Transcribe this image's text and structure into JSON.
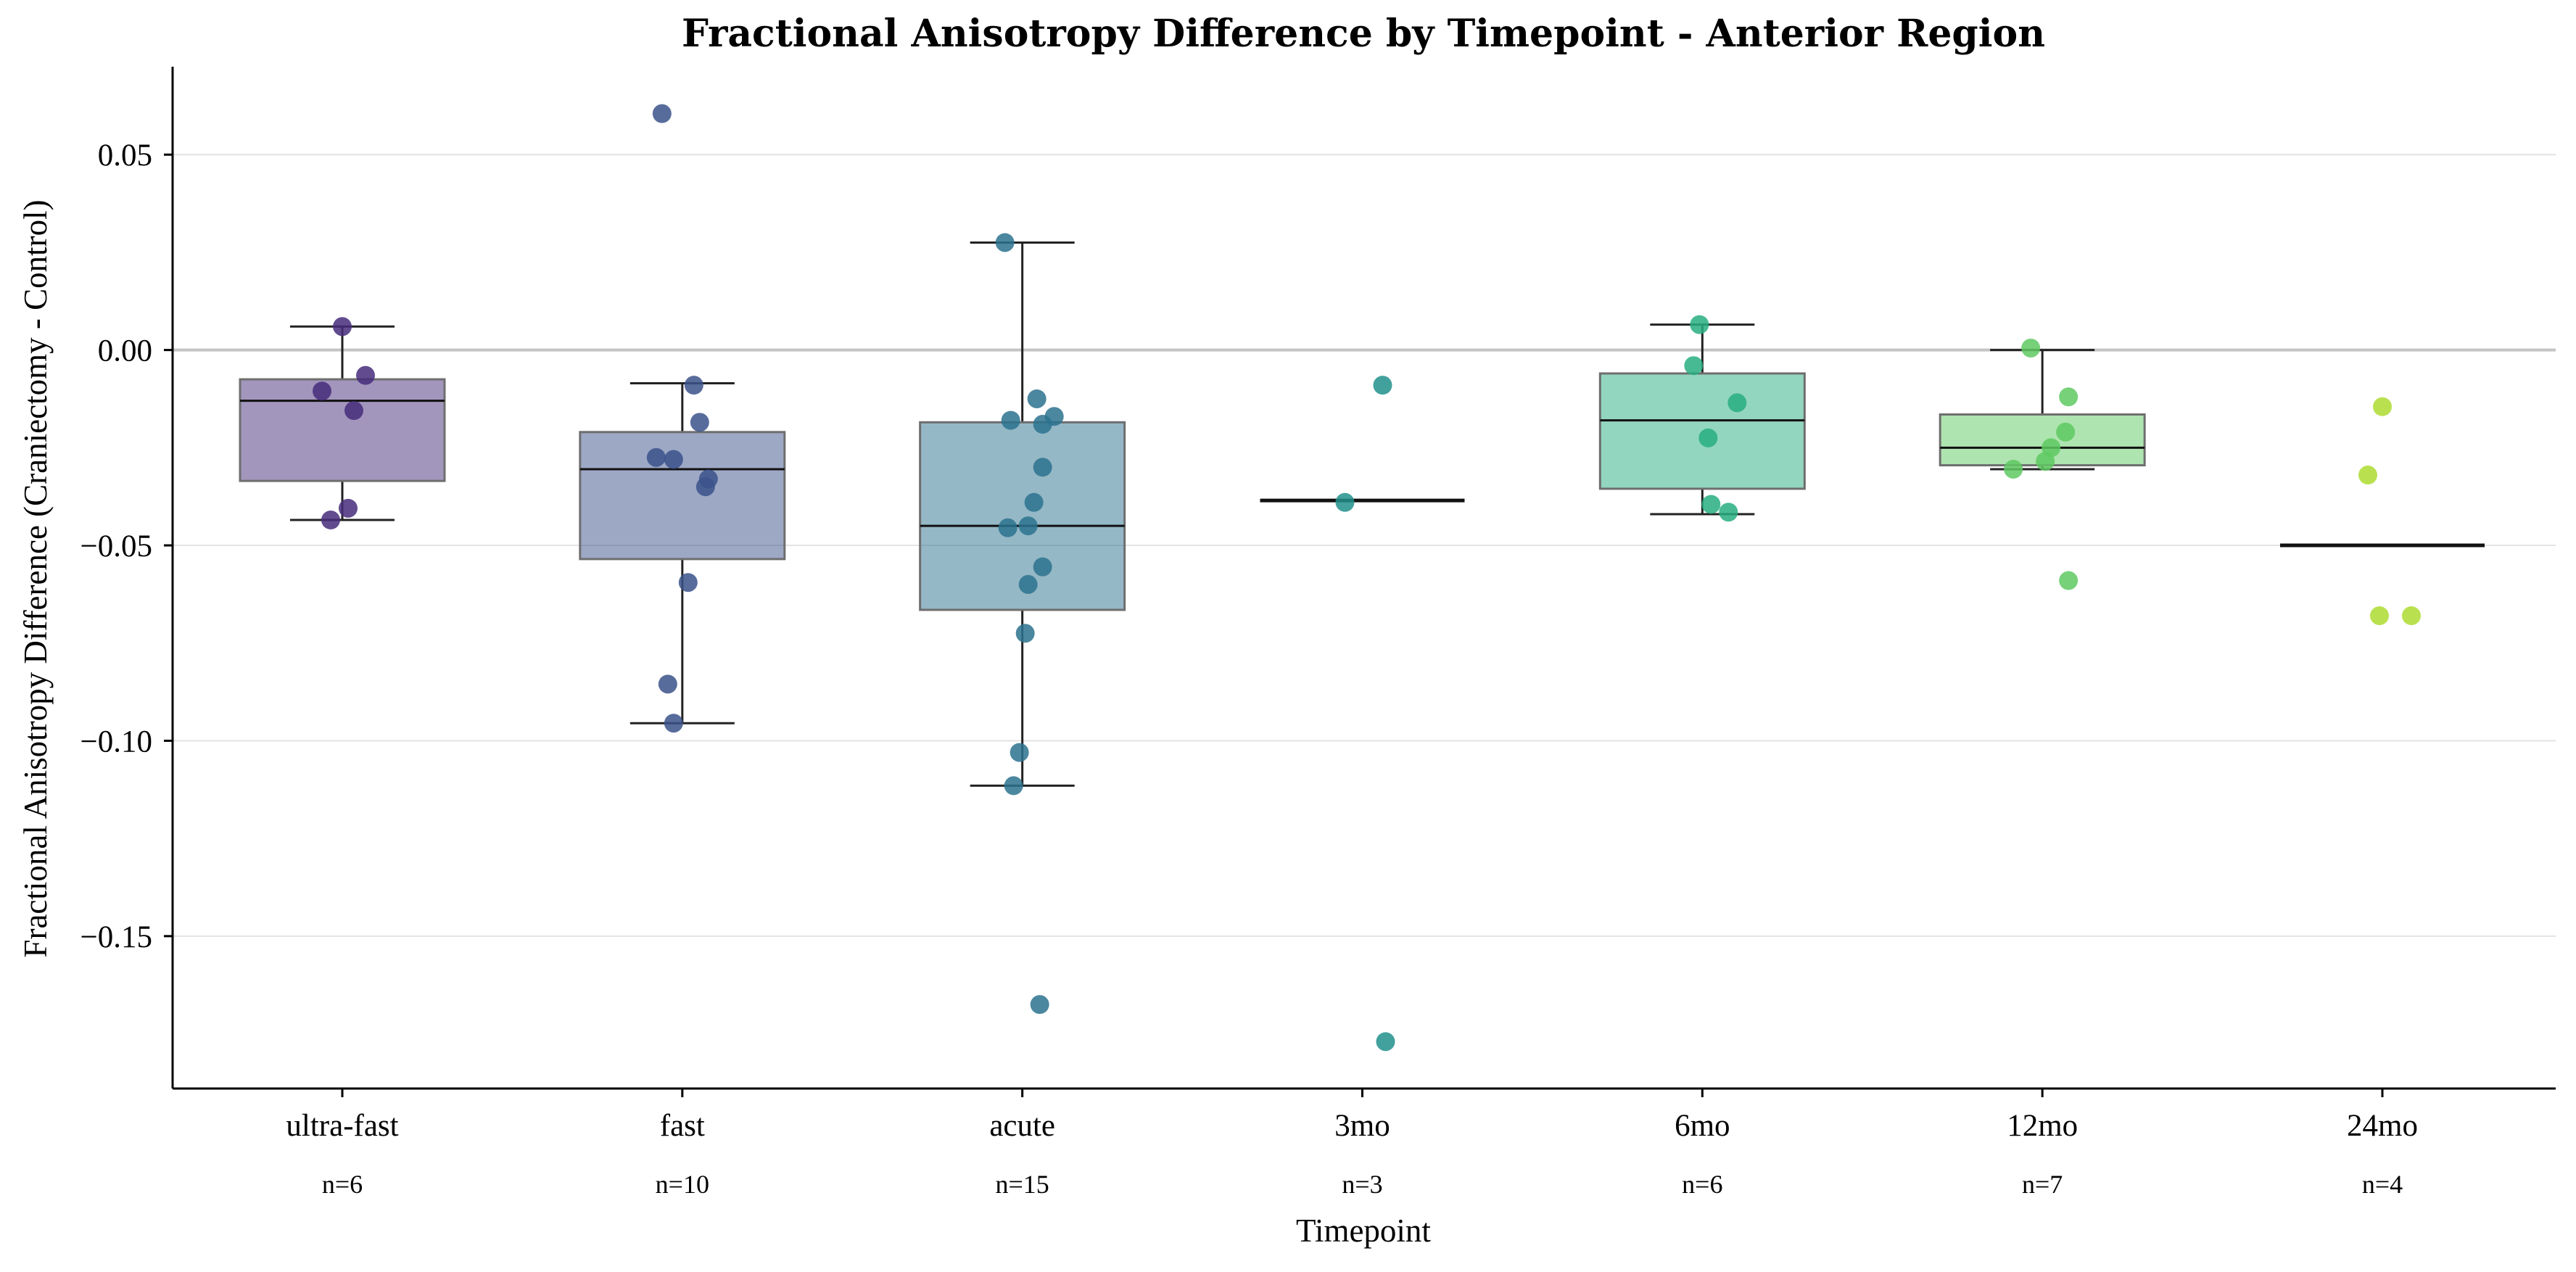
{
  "chart_data": {
    "type": "box",
    "title": "Fractional Anisotropy Difference by Timepoint - Anterior Region",
    "xlabel": "Timepoint",
    "ylabel": "Fractional Anisotropy Difference (Craniectomy - Control)",
    "ylim": [
      -0.189,
      0.0725
    ],
    "yticks": [
      0.05,
      0.0,
      -0.05,
      -0.1,
      -0.15
    ],
    "ytick_labels": [
      "0.05",
      "0.00",
      "−0.05",
      "−0.10",
      "−0.15"
    ],
    "reference_line": 0.0,
    "grid": "horizontal",
    "categories": [
      "ultra-fast",
      "fast",
      "acute",
      "3mo",
      "6mo",
      "12mo",
      "24mo"
    ],
    "counts": [
      "n=6",
      "n=10",
      "n=15",
      "n=3",
      "n=6",
      "n=7",
      "n=4"
    ],
    "colors": [
      "#472d7b",
      "#3b528b",
      "#2c728e",
      "#21918c",
      "#28ae80",
      "#5ec962",
      "#addc30"
    ],
    "boxes": [
      {
        "q1": -0.0335,
        "median": -0.013,
        "q3": -0.0075,
        "whisker_low": -0.0435,
        "whisker_high": 0.006
      },
      {
        "q1": -0.0535,
        "median": -0.0305,
        "q3": -0.021,
        "whisker_low": -0.0955,
        "whisker_high": -0.0085
      },
      {
        "q1": -0.0665,
        "median": -0.045,
        "q3": -0.0185,
        "whisker_low": -0.1115,
        "whisker_high": 0.0275
      },
      {
        "q1": -0.0385,
        "median": -0.0385,
        "q3": -0.0385,
        "whisker_low": -0.0385,
        "whisker_high": -0.0385
      },
      {
        "q1": -0.0355,
        "median": -0.018,
        "q3": -0.006,
        "whisker_low": -0.042,
        "whisker_high": 0.0065
      },
      {
        "q1": -0.0295,
        "median": -0.025,
        "q3": -0.0165,
        "whisker_low": -0.0305,
        "whisker_high": 0.0
      },
      {
        "q1": -0.05,
        "median": -0.05,
        "q3": -0.05,
        "whisker_low": -0.05,
        "whisker_high": -0.05
      }
    ],
    "points": [
      [
        [
          0.0,
          0.006
        ],
        [
          0.08,
          -0.0065
        ],
        [
          -0.07,
          -0.0105
        ],
        [
          0.04,
          -0.0155
        ],
        [
          0.02,
          -0.0405
        ],
        [
          -0.04,
          -0.0435
        ]
      ],
      [
        [
          -0.07,
          0.0605
        ],
        [
          0.04,
          -0.009
        ],
        [
          0.06,
          -0.0185
        ],
        [
          -0.09,
          -0.0275
        ],
        [
          -0.03,
          -0.028
        ],
        [
          0.09,
          -0.033
        ],
        [
          0.08,
          -0.035
        ],
        [
          0.02,
          -0.0595
        ],
        [
          -0.05,
          -0.0855
        ],
        [
          -0.03,
          -0.0955
        ]
      ],
      [
        [
          -0.06,
          0.0275
        ],
        [
          0.05,
          -0.0125
        ],
        [
          0.11,
          -0.017
        ],
        [
          -0.04,
          -0.018
        ],
        [
          0.07,
          -0.019
        ],
        [
          0.07,
          -0.03
        ],
        [
          0.04,
          -0.039
        ],
        [
          -0.05,
          -0.0455
        ],
        [
          0.02,
          -0.045
        ],
        [
          0.07,
          -0.0555
        ],
        [
          0.02,
          -0.06
        ],
        [
          0.01,
          -0.0725
        ],
        [
          -0.01,
          -0.103
        ],
        [
          -0.03,
          -0.1115
        ],
        [
          0.06,
          -0.1675
        ]
      ],
      [
        [
          0.07,
          -0.009
        ],
        [
          -0.06,
          -0.039
        ],
        [
          0.08,
          -0.177
        ]
      ],
      [
        [
          -0.01,
          0.0065
        ],
        [
          -0.03,
          -0.004
        ],
        [
          0.12,
          -0.0135
        ],
        [
          0.02,
          -0.0225
        ],
        [
          0.03,
          -0.0395
        ],
        [
          0.09,
          -0.0415
        ]
      ],
      [
        [
          -0.04,
          0.0005
        ],
        [
          0.09,
          -0.012
        ],
        [
          0.08,
          -0.021
        ],
        [
          0.03,
          -0.025
        ],
        [
          0.01,
          -0.0285
        ],
        [
          -0.1,
          -0.0305
        ],
        [
          0.09,
          -0.059
        ]
      ],
      [
        [
          0.0,
          -0.0145
        ],
        [
          -0.05,
          -0.032
        ],
        [
          -0.01,
          -0.068
        ],
        [
          0.1,
          -0.068
        ]
      ]
    ]
  }
}
